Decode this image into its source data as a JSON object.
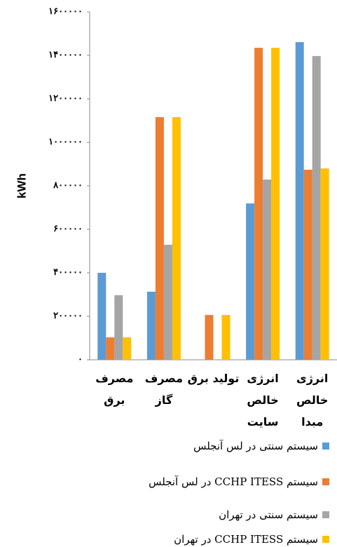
{
  "chart_data": {
    "type": "bar",
    "y_label": "kWh",
    "categories": [
      "مصرف\nبرق",
      "مصرف\nگاز",
      "تولید برق",
      "انرژی\nخالص\nسایت",
      "انرژی\nخالص\nمبدا"
    ],
    "series": [
      {
        "name": "سیستم سنتی در لس آنجلس",
        "color": "#5b9bd5",
        "values": [
          400000,
          313000,
          0,
          719000,
          1461000
        ]
      },
      {
        "name": "سیستم CCHP ITESS در لس آنجلس",
        "color": "#ed7d31",
        "values": [
          103000,
          1116000,
          206000,
          1435000,
          874000
        ]
      },
      {
        "name": "سیستم سنتی در تهران",
        "color": "#a5a5a5",
        "values": [
          297000,
          529000,
          0,
          829000,
          1397000
        ]
      },
      {
        "name": "سیستم CCHP ITESS در تهران",
        "color": "#ffc000",
        "values": [
          103000,
          1116000,
          206000,
          1435000,
          880000
        ]
      }
    ],
    "ylim": [
      0,
      1600000
    ],
    "yticks": [
      {
        "value": 0,
        "label": "۰"
      },
      {
        "value": 200000,
        "label": "۲۰۰۰۰۰"
      },
      {
        "value": 400000,
        "label": "۴۰۰۰۰۰"
      },
      {
        "value": 600000,
        "label": "۶۰۰۰۰۰"
      },
      {
        "value": 800000,
        "label": "۸۰۰۰۰۰"
      },
      {
        "value": 1000000,
        "label": "۱۰۰۰۰۰۰"
      },
      {
        "value": 1200000,
        "label": "۱۲۰۰۰۰۰"
      },
      {
        "value": 1400000,
        "label": "۱۴۰۰۰۰۰"
      },
      {
        "value": 1600000,
        "label": "۱۶۰۰۰۰۰"
      }
    ],
    "grid": false
  }
}
